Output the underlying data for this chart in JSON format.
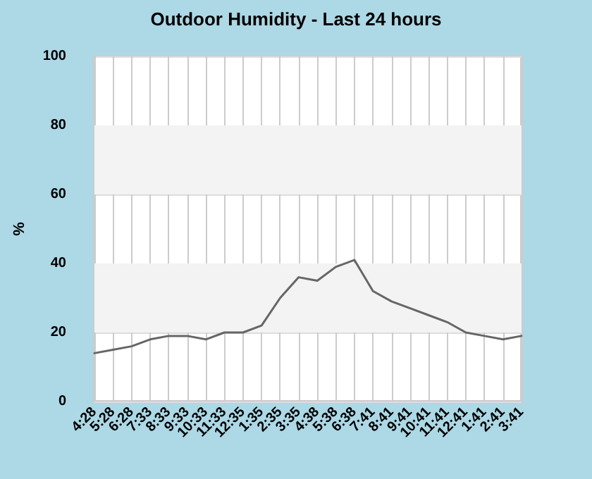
{
  "chart_data": {
    "type": "line",
    "title": "Outdoor Humidity - Last 24 hours",
    "ylabel": "%",
    "categories": [
      "4:28",
      "5:28",
      "6:28",
      "7:33",
      "8:33",
      "9:33",
      "10:33",
      "11:33",
      "12:35",
      "1:35",
      "2:35",
      "3:35",
      "4:38",
      "5:38",
      "6:38",
      "7:41",
      "8:41",
      "9:41",
      "10:41",
      "11:41",
      "12:41",
      "1:41",
      "2:41",
      "3:41"
    ],
    "series": [
      {
        "color": "#666666",
        "values": [
          14,
          15,
          16,
          18,
          19,
          19,
          18,
          20,
          20,
          22,
          30,
          36,
          35,
          39,
          41,
          32,
          29,
          27,
          25,
          23,
          20,
          19,
          18,
          19
        ]
      }
    ],
    "ylim": [
      0,
      100
    ],
    "yticks": [
      0,
      20,
      40,
      60,
      80,
      100
    ],
    "bands": [
      {
        "axis": "y",
        "from": 20,
        "to": 40,
        "color": "#f3f3f3"
      },
      {
        "axis": "y",
        "from": 60,
        "to": 80,
        "color": "#f3f3f3"
      }
    ],
    "grid": true,
    "marker": "none",
    "line_style": "solid"
  }
}
